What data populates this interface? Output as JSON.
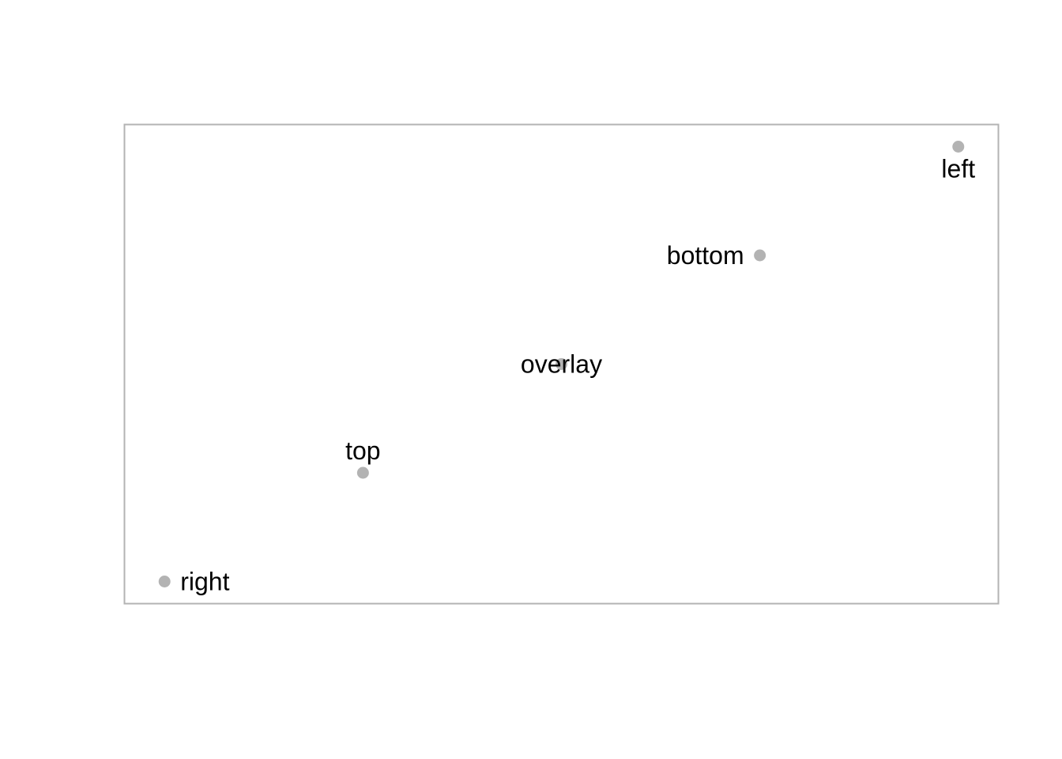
{
  "chart_data": {
    "type": "scatter",
    "title": "",
    "xlabel": "",
    "ylabel": "",
    "xlim": [
      0.8,
      5.2
    ],
    "ylim": [
      0.8,
      5.2
    ],
    "axes_shown": false,
    "grid": false,
    "frame": true,
    "marker_color": "#b3b3b3",
    "label_color": "#000000",
    "frame_color": "#b3b3b3",
    "points": [
      {
        "x": 1,
        "y": 1,
        "label": "right",
        "label_position": "right"
      },
      {
        "x": 2,
        "y": 2,
        "label": "top",
        "label_position": "top"
      },
      {
        "x": 3,
        "y": 3,
        "label": "overlay",
        "label_position": "center"
      },
      {
        "x": 4,
        "y": 4,
        "label": "bottom",
        "label_position": "left"
      },
      {
        "x": 5,
        "y": 5,
        "label": "left",
        "label_position": "bottom"
      }
    ]
  }
}
